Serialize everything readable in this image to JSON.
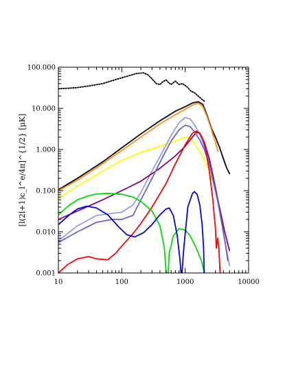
{
  "chart_data": {
    "type": "line",
    "title": "",
    "xlabel": "",
    "ylabel": "[l(2l+1)c_l^e/4π]^{1/2} [μK]",
    "x_scale": "log",
    "y_scale": "log",
    "xlim": [
      10,
      10000
    ],
    "ylim": [
      0.001,
      100
    ],
    "x_ticks": [
      10,
      100,
      1000,
      10000
    ],
    "x_tick_labels": [
      "10",
      "100",
      "1000",
      "10000"
    ],
    "y_ticks": [
      0.001,
      0.01,
      0.1,
      1,
      10,
      100
    ],
    "y_tick_labels": [
      "0.001",
      "0.010",
      "0.100",
      "1.000",
      "10.000",
      "100.000"
    ],
    "grid": false,
    "legend": "none",
    "series": [
      {
        "color": "#000000",
        "style": "dotted",
        "points": [
          [
            10,
            30
          ],
          [
            15,
            31
          ],
          [
            20,
            32
          ],
          [
            30,
            35
          ],
          [
            50,
            40
          ],
          [
            80,
            50
          ],
          [
            120,
            60
          ],
          [
            170,
            70
          ],
          [
            220,
            73
          ],
          [
            260,
            65
          ],
          [
            300,
            52
          ],
          [
            350,
            40
          ],
          [
            400,
            38
          ],
          [
            450,
            45
          ],
          [
            500,
            49
          ],
          [
            550,
            42
          ],
          [
            600,
            38
          ],
          [
            650,
            42
          ],
          [
            700,
            46
          ],
          [
            800,
            38
          ],
          [
            900,
            40
          ],
          [
            1000,
            36
          ],
          [
            1100,
            32
          ],
          [
            1200,
            27
          ],
          [
            1400,
            24
          ],
          [
            1600,
            20
          ],
          [
            1800,
            17
          ],
          [
            2000,
            15
          ]
        ]
      },
      {
        "color": "#000000",
        "style": "solid",
        "points": [
          [
            10,
            0.105
          ],
          [
            20,
            0.2
          ],
          [
            50,
            0.5
          ],
          [
            100,
            1.1
          ],
          [
            200,
            2.4
          ],
          [
            400,
            5
          ],
          [
            700,
            8.5
          ],
          [
            1000,
            11
          ],
          [
            1300,
            13.5
          ],
          [
            1600,
            14.5
          ],
          [
            1900,
            12.5
          ],
          [
            2200,
            7
          ],
          [
            2600,
            3.2
          ],
          [
            3000,
            2
          ],
          [
            3500,
            1.1
          ],
          [
            4000,
            0.6
          ],
          [
            4500,
            0.36
          ],
          [
            5000,
            0.26
          ]
        ]
      },
      {
        "color": "#ff8c1a",
        "style": "solid",
        "points": [
          [
            10,
            0.1
          ],
          [
            20,
            0.18
          ],
          [
            50,
            0.45
          ],
          [
            100,
            0.95
          ],
          [
            200,
            2.0
          ],
          [
            400,
            4.2
          ],
          [
            700,
            7
          ],
          [
            1000,
            9.5
          ],
          [
            1300,
            12
          ],
          [
            1600,
            13.5
          ],
          [
            1900,
            11
          ],
          [
            2200,
            6.5
          ],
          [
            2600,
            3
          ],
          [
            3000,
            1.5
          ],
          [
            3300,
            0.9
          ]
        ]
      },
      {
        "color": "#ffff00",
        "style": "solid",
        "points": [
          [
            10,
            0.065
          ],
          [
            20,
            0.13
          ],
          [
            50,
            0.3
          ],
          [
            100,
            0.55
          ],
          [
            200,
            0.85
          ],
          [
            400,
            1.2
          ],
          [
            700,
            1.6
          ],
          [
            1000,
            2
          ],
          [
            1200,
            1.9
          ],
          [
            1400,
            1.4
          ],
          [
            1700,
            0.9
          ],
          [
            2000,
            0.55
          ],
          [
            2400,
            0.3
          ],
          [
            2800,
            0.15
          ],
          [
            3200,
            0.07
          ],
          [
            3600,
            0.03
          ],
          [
            4000,
            0.015
          ]
        ]
      },
      {
        "color": "#9999ee",
        "style": "solid",
        "points": [
          [
            10,
            0.006
          ],
          [
            20,
            0.014
          ],
          [
            40,
            0.025
          ],
          [
            70,
            0.028
          ],
          [
            100,
            0.03
          ],
          [
            150,
            0.045
          ],
          [
            200,
            0.09
          ],
          [
            300,
            0.3
          ],
          [
            450,
            0.95
          ],
          [
            600,
            2.2
          ],
          [
            800,
            4.5
          ],
          [
            1000,
            6
          ],
          [
            1200,
            5.5
          ],
          [
            1400,
            4
          ],
          [
            1700,
            2.3
          ],
          [
            2000,
            1.2
          ],
          [
            2500,
            0.4
          ],
          [
            3000,
            0.12
          ],
          [
            3500,
            0.035
          ],
          [
            4000,
            0.01
          ],
          [
            4600,
            0.003
          ],
          [
            5000,
            0.0015
          ]
        ]
      },
      {
        "color": "#800080",
        "style": "solid",
        "points": [
          [
            10,
            0.02
          ],
          [
            20,
            0.032
          ],
          [
            50,
            0.06
          ],
          [
            100,
            0.1
          ],
          [
            200,
            0.17
          ],
          [
            400,
            0.35
          ],
          [
            700,
            0.7
          ],
          [
            1000,
            1.2
          ],
          [
            1300,
            2
          ],
          [
            1500,
            2.6
          ],
          [
            1700,
            2.5
          ],
          [
            2000,
            1.5
          ],
          [
            2400,
            0.6
          ],
          [
            2800,
            0.2
          ],
          [
            3200,
            0.07
          ],
          [
            3700,
            0.025
          ],
          [
            4200,
            0.01
          ],
          [
            5000,
            0.0035
          ]
        ]
      },
      {
        "color": "#6666cc",
        "style": "solid",
        "points": [
          [
            10,
            0.0055
          ],
          [
            20,
            0.01
          ],
          [
            40,
            0.017
          ],
          [
            70,
            0.02
          ],
          [
            100,
            0.02
          ],
          [
            150,
            0.025
          ],
          [
            200,
            0.06
          ],
          [
            300,
            0.2
          ],
          [
            450,
            0.7
          ],
          [
            600,
            1.6
          ],
          [
            800,
            3
          ],
          [
            1000,
            3.9
          ],
          [
            1200,
            3.6
          ],
          [
            1400,
            2.7
          ],
          [
            1700,
            1.7
          ],
          [
            2000,
            1
          ],
          [
            2400,
            0.45
          ],
          [
            2800,
            0.16
          ],
          [
            3300,
            0.05
          ],
          [
            3800,
            0.015
          ],
          [
            4300,
            0.005
          ],
          [
            4700,
            0.002
          ]
        ]
      },
      {
        "color": "#ff0000",
        "style": "solid",
        "points": [
          [
            10,
            0.001
          ],
          [
            14,
            0.0016
          ],
          [
            20,
            0.0022
          ],
          [
            30,
            0.0025
          ],
          [
            40,
            0.0022
          ],
          [
            60,
            0.0021
          ],
          [
            80,
            0.003
          ],
          [
            100,
            0.0045
          ],
          [
            150,
            0.009
          ],
          [
            200,
            0.016
          ],
          [
            300,
            0.04
          ],
          [
            500,
            0.15
          ],
          [
            700,
            0.45
          ],
          [
            1000,
            1.3
          ],
          [
            1300,
            2.5
          ],
          [
            1500,
            2.8
          ],
          [
            1700,
            2.5
          ],
          [
            1900,
            1.8
          ],
          [
            2100,
            1
          ],
          [
            2400,
            0.3
          ],
          [
            2700,
            0.07
          ],
          [
            3000,
            0.012
          ],
          [
            3100,
            0.004
          ],
          [
            3250,
            0.007
          ],
          [
            3400,
            0.004
          ],
          [
            3550,
            0.001
          ]
        ]
      },
      {
        "color": "#00dd00",
        "style": "solid",
        "points": [
          [
            10,
            0.026
          ],
          [
            15,
            0.045
          ],
          [
            20,
            0.06
          ],
          [
            30,
            0.075
          ],
          [
            40,
            0.083
          ],
          [
            60,
            0.086
          ],
          [
            100,
            0.082
          ],
          [
            150,
            0.07
          ],
          [
            200,
            0.055
          ],
          [
            300,
            0.032
          ],
          [
            400,
            0.014
          ],
          [
            470,
            0.004
          ],
          [
            500,
            0.001
          ],
          [
            540,
            0.001
          ],
          [
            560,
            0.003
          ],
          [
            650,
            0.008
          ],
          [
            800,
            0.012
          ],
          [
            1000,
            0.011
          ],
          [
            1200,
            0.008
          ],
          [
            1500,
            0.004
          ],
          [
            1800,
            0.002
          ],
          [
            2000,
            0.001
          ]
        ]
      },
      {
        "color": "#0000dd",
        "style": "solid",
        "points": [
          [
            10,
            0.015
          ],
          [
            15,
            0.026
          ],
          [
            20,
            0.036
          ],
          [
            28,
            0.042
          ],
          [
            40,
            0.038
          ],
          [
            60,
            0.026
          ],
          [
            90,
            0.013
          ],
          [
            120,
            0.0085
          ],
          [
            160,
            0.0075
          ],
          [
            220,
            0.0095
          ],
          [
            300,
            0.015
          ],
          [
            400,
            0.026
          ],
          [
            500,
            0.036
          ],
          [
            560,
            0.038
          ],
          [
            650,
            0.025
          ],
          [
            750,
            0.008
          ],
          [
            830,
            0.002
          ],
          [
            860,
            0.001
          ],
          [
            890,
            0.001
          ],
          [
            950,
            0.004
          ],
          [
            1100,
            0.04
          ],
          [
            1300,
            0.085
          ],
          [
            1400,
            0.095
          ],
          [
            1550,
            0.08
          ],
          [
            1700,
            0.045
          ],
          [
            1850,
            0.015
          ],
          [
            1950,
            0.004
          ],
          [
            2000,
            0.001
          ]
        ]
      }
    ]
  }
}
